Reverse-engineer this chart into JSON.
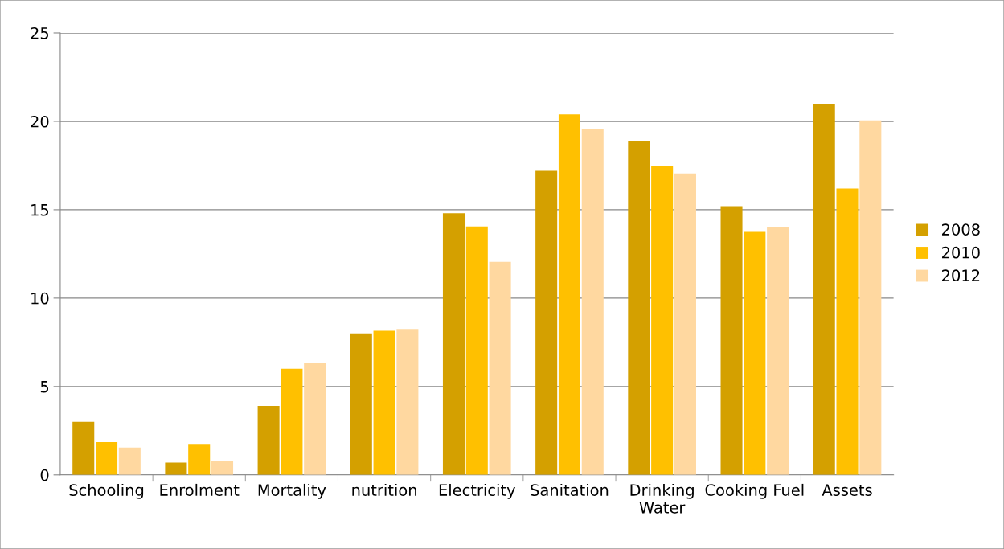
{
  "chart_data": {
    "type": "bar",
    "categories": [
      "Schooling",
      "Enrolment",
      "Mortality",
      "nutrition",
      "Electricity",
      "Sanitation",
      "Drinking Water",
      "Cooking Fuel",
      "Assets"
    ],
    "series": [
      {
        "name": "2008",
        "color": "#d4a000",
        "values": [
          3.0,
          0.7,
          3.9,
          8.0,
          14.8,
          17.2,
          18.9,
          15.2,
          21.0
        ]
      },
      {
        "name": "2010",
        "color": "#ffc000",
        "values": [
          1.85,
          1.75,
          6.0,
          8.15,
          14.05,
          20.4,
          17.5,
          13.75,
          16.2
        ]
      },
      {
        "name": "2012",
        "color": "#ffd8a0",
        "values": [
          1.55,
          0.8,
          6.35,
          8.25,
          12.05,
          19.55,
          17.05,
          14.0,
          20.05
        ]
      }
    ],
    "ylim": [
      0,
      25
    ],
    "yticks": [
      0,
      5,
      10,
      15,
      20,
      25
    ],
    "grid": "y",
    "legend": "right"
  }
}
